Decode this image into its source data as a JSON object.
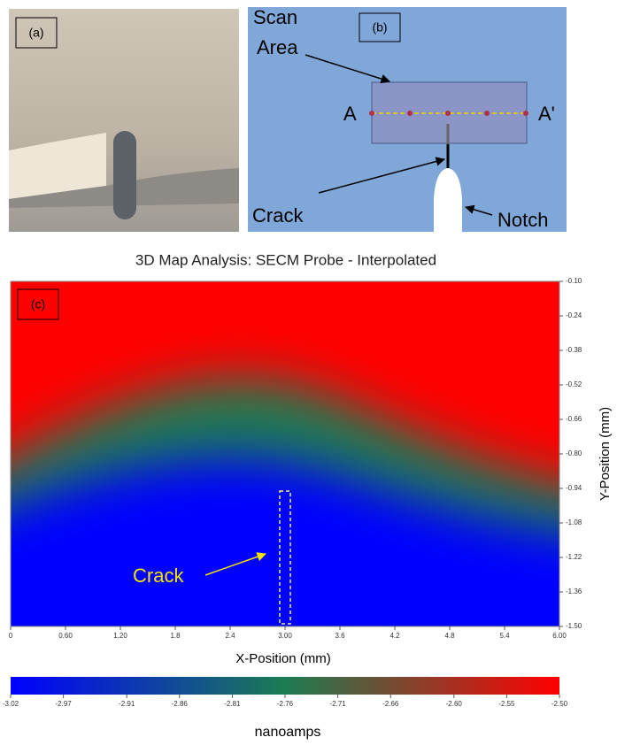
{
  "panels": {
    "a": {
      "label": "(a)"
    },
    "b": {
      "label": "(b)",
      "scan_area": [
        "Scan",
        "Area"
      ],
      "start": "A",
      "end": "A'",
      "crack": "Crack",
      "notch": "Notch"
    }
  },
  "chart_data": {
    "type": "heatmap",
    "title": "3D Map Analysis: SECM Probe - Interpolated",
    "panel_label": "(c)",
    "xlabel": "X-Position (mm)",
    "ylabel": "Y-Position (mm)",
    "annotation": "Crack",
    "xlim": [
      0,
      6
    ],
    "xticks": [
      0,
      {
        "value": 0.6,
        "label": "0.60"
      },
      {
        "value": 1.2,
        "label": "1.20"
      },
      1.8,
      2.4,
      {
        "value": 3,
        "label": "3.00"
      },
      3.6,
      4.2,
      4.8,
      5.4,
      {
        "value": 6,
        "label": "6.00"
      }
    ],
    "ylim": [
      -1.5,
      -0.1
    ],
    "yticks": [
      {
        "value": -0.1,
        "label": "-0.10"
      },
      -0.24,
      -0.38,
      -0.52,
      -0.66,
      {
        "value": -0.8,
        "label": "-0.80"
      },
      -0.94,
      -1.08,
      -1.22,
      -1.36,
      {
        "value": -1.5,
        "label": "-1.50"
      }
    ],
    "colorbar": {
      "label": "nanoamps",
      "lim": [
        -3.02,
        -2.5
      ],
      "colors": [
        "#0000ff",
        "#1c7c52",
        "#ff0000"
      ],
      "ticks": [
        -3.02,
        -2.97,
        -2.91,
        -2.86,
        -2.81,
        -2.76,
        -2.71,
        -2.66,
        {
          "value": -2.6,
          "label": "-2.60"
        },
        -2.55,
        {
          "value": -2.5,
          "label": "-2.50"
        }
      ]
    }
  }
}
